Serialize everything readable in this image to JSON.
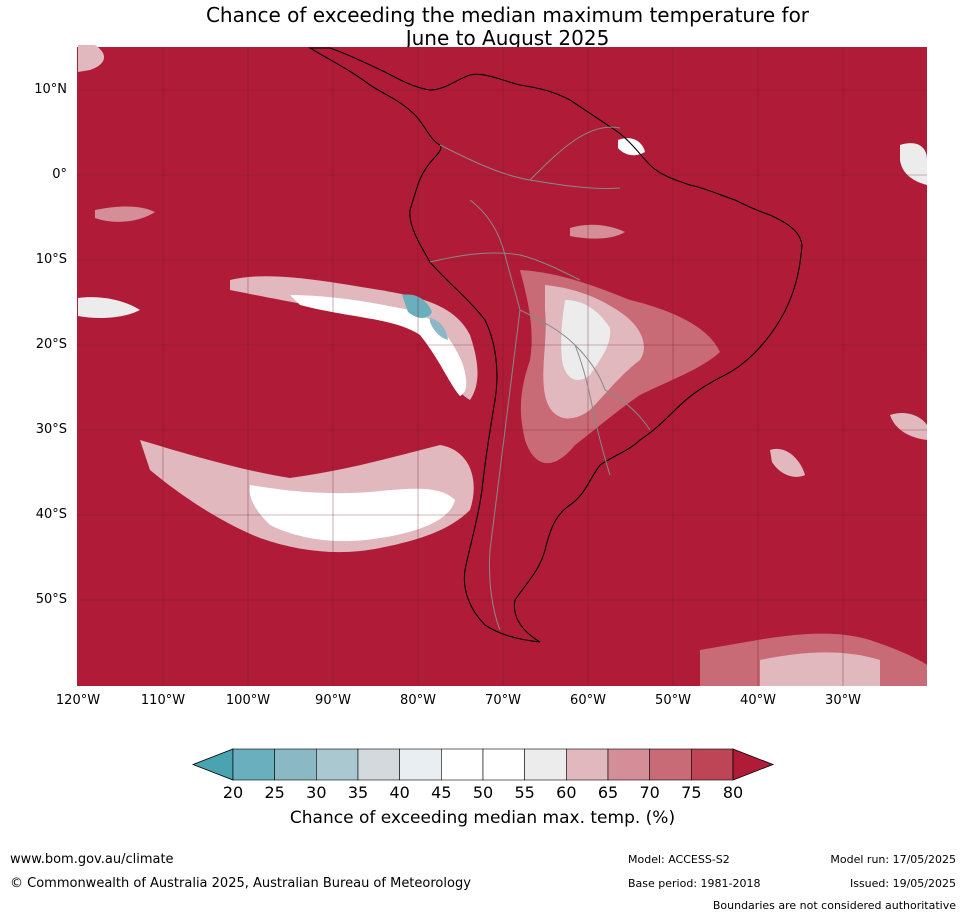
{
  "title_line1": "Chance of exceeding the median maximum temperature for",
  "title_line2": "June to August 2025",
  "lat_labels": [
    "10°N",
    "0°",
    "10°S",
    "20°S",
    "30°S",
    "40°S",
    "50°S"
  ],
  "lon_labels": [
    "120°W",
    "110°W",
    "100°W",
    "90°W",
    "80°W",
    "70°W",
    "60°W",
    "50°W",
    "40°W",
    "30°W"
  ],
  "colorbar": {
    "ticks": [
      "20",
      "25",
      "30",
      "35",
      "40",
      "45",
      "50",
      "55",
      "60",
      "65",
      "70",
      "75",
      "80"
    ],
    "label": "Chance of exceeding median max. temp. (%)",
    "colors": {
      "below_20": "#4aa3b0",
      "20_25": "#6aafbd",
      "25_30": "#8ab8c5",
      "30_35": "#a9c8cf",
      "35_40": "#d3d9dc",
      "40_45": "#e8eef1",
      "45_50": "#ffffff",
      "50_55": "#ffffff",
      "55_60": "#ececec",
      "60_65": "#e0b8be",
      "65_70": "#d48e98",
      "70_75": "#c96a77",
      "75_80": "#be4556",
      "above_80": "#b01c37"
    }
  },
  "footer": {
    "website": "www.bom.gov.au/climate",
    "copyright": "© Commonwealth of Australia 2025, Australian Bureau of Meteorology",
    "model": "Model: ACCESS-S2",
    "base_period": "Base period: 1981-2018",
    "model_run": "Model run: 17/05/2025",
    "issued": "Issued: 19/05/2025",
    "disclaimer": "Boundaries are not considered authoritative"
  }
}
